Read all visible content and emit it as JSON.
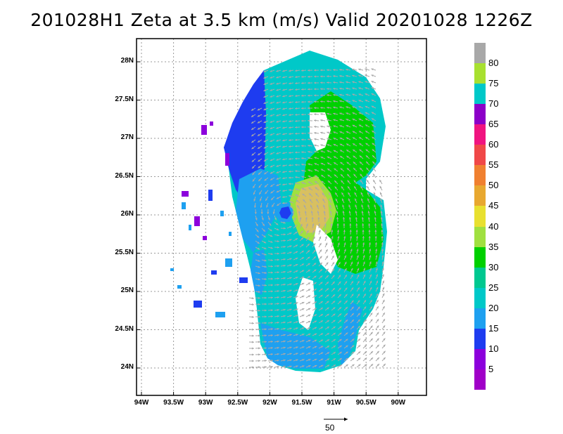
{
  "title": "201028H1  Zeta at 3.5 km (m/s) Valid 20201028  1226Z",
  "lat_labels": [
    "28N",
    "27.5N",
    "27N",
    "26.5N",
    "26N",
    "25.5N",
    "25N",
    "24.5N",
    "24N"
  ],
  "lon_labels": [
    "94W",
    "93.5W",
    "93W",
    "92.5W",
    "92W",
    "91.5W",
    "91W",
    "90.5W",
    "90W"
  ],
  "colorbar": {
    "labels": [
      "80",
      "75",
      "70",
      "65",
      "60",
      "55",
      "50",
      "45",
      "40",
      "35",
      "30",
      "25",
      "20",
      "15",
      "10",
      "5"
    ],
    "colors": [
      "#a8a8a8",
      "#a8e030",
      "#00c8c8",
      "#8c00c8",
      "#f01480",
      "#f04848",
      "#f08030",
      "#e8a830",
      "#e8e030",
      "#a0e040",
      "#00d000",
      "#00c890",
      "#00c8c8",
      "#1ea0f0",
      "#1e3cf0",
      "#8c00dc",
      "#a000c8"
    ]
  },
  "reference_vector": {
    "label": "50"
  },
  "field_colors": {
    "purple": "#8c00dc",
    "blue": "#1e3cf0",
    "lightblue": "#1ea0f0",
    "cyan": "#00c8c8",
    "teal": "#00c890",
    "green": "#00d000",
    "lime": "#a0e040",
    "tan": "#d8c060",
    "arrow": "#a8a8a8"
  }
}
